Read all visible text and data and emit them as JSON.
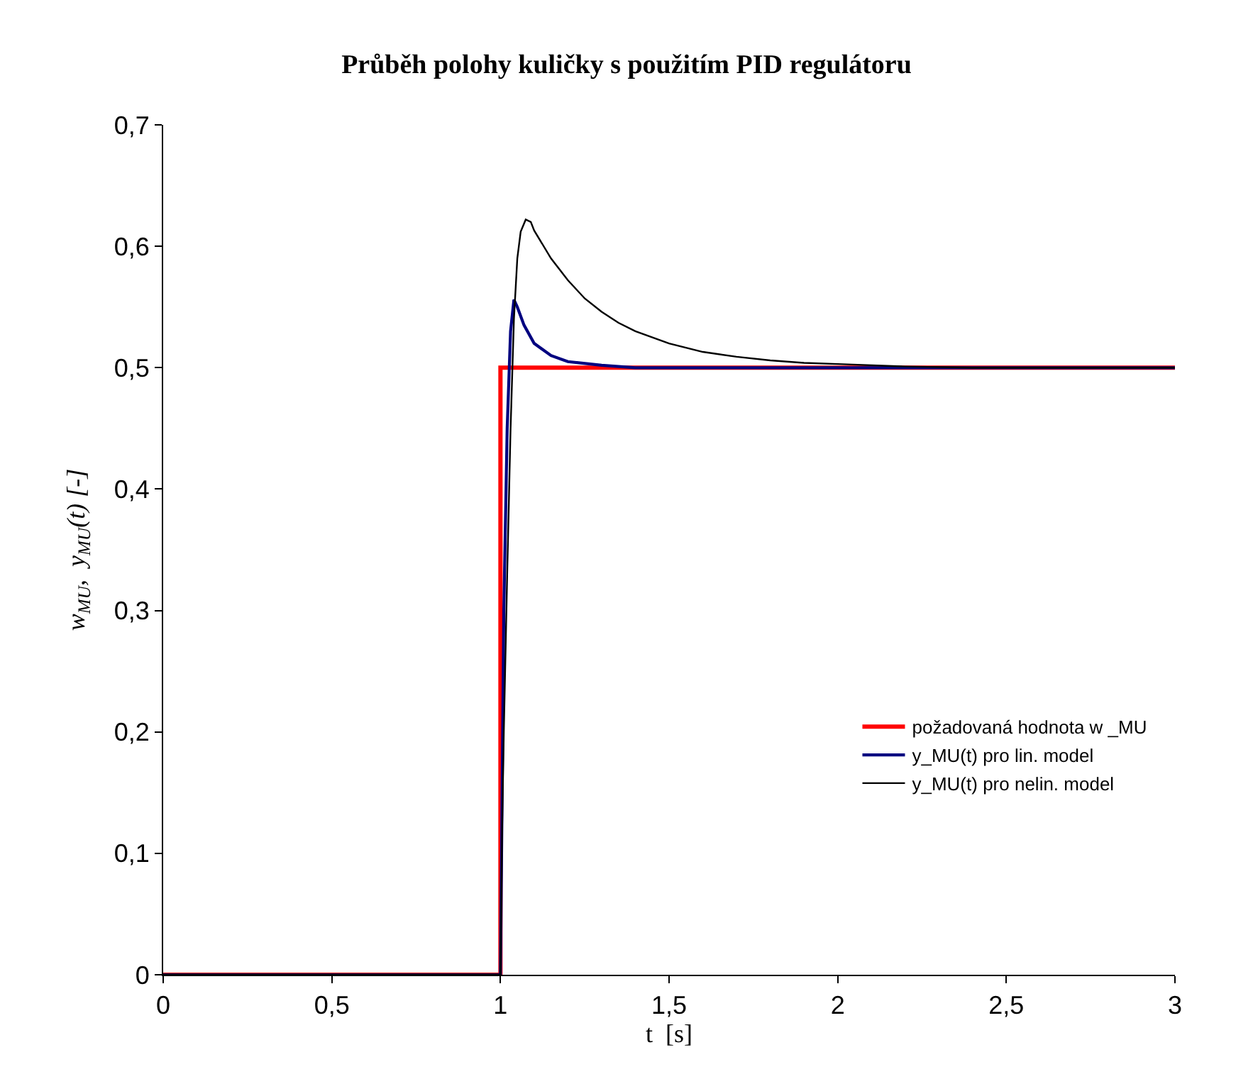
{
  "chart_data": {
    "type": "line",
    "title": "Průběh polohy kuličky s použitím PID regulátoru",
    "xlabel": "t  [s]",
    "ylabel": "w$_{MU}$,  y$_{MU}$(t) [-]",
    "xlim": [
      0,
      3
    ],
    "xticks": [
      0,
      {
        "value": 0.5,
        "label": "0,5"
      },
      1,
      {
        "value": 1.5,
        "label": "1,5"
      },
      2,
      {
        "value": 2.5,
        "label": "2,5"
      },
      3
    ],
    "ylim": [
      0,
      0.7
    ],
    "yticks": [
      0,
      {
        "value": 0.1,
        "label": "0,1"
      },
      {
        "value": 0.2,
        "label": "0,2"
      },
      {
        "value": 0.3,
        "label": "0,3"
      },
      {
        "value": 0.4,
        "label": "0,4"
      },
      {
        "value": 0.5,
        "label": "0,5"
      },
      {
        "value": 0.6,
        "label": "0,6"
      },
      {
        "value": 0.7,
        "label": "0,7"
      }
    ],
    "legend": "bottom right",
    "marker": "none",
    "line_style": "solid",
    "series": [
      {
        "name": "požadovaná hodnota w _MU",
        "color": "#ff0000",
        "x": [
          0,
          1,
          1,
          3
        ],
        "values": [
          0,
          0,
          0.5,
          0.5
        ]
      },
      {
        "name": "y_MU(t) pro lin. model",
        "color": "#000080",
        "x": [
          0,
          1,
          1.005,
          1.01,
          1.02,
          1.03,
          1.04,
          1.05,
          1.07,
          1.1,
          1.15,
          1.2,
          1.3,
          1.4,
          3
        ],
        "values": [
          0,
          0,
          0.15,
          0.3,
          0.45,
          0.53,
          0.556,
          0.55,
          0.535,
          0.52,
          0.51,
          0.505,
          0.502,
          0.5,
          0.5
        ]
      },
      {
        "name": "y_MU(t) pro nelin. model",
        "color": "#000000",
        "x": [
          0,
          1,
          1.005,
          1.01,
          1.02,
          1.03,
          1.04,
          1.05,
          1.06,
          1.075,
          1.09,
          1.1,
          1.15,
          1.2,
          1.25,
          1.3,
          1.35,
          1.4,
          1.5,
          1.6,
          1.7,
          1.8,
          1.9,
          2.0,
          2.2,
          2.4,
          3
        ],
        "values": [
          0,
          0,
          0.12,
          0.2,
          0.33,
          0.45,
          0.54,
          0.59,
          0.612,
          0.622,
          0.62,
          0.613,
          0.59,
          0.572,
          0.557,
          0.546,
          0.537,
          0.53,
          0.52,
          0.513,
          0.509,
          0.506,
          0.504,
          0.503,
          0.501,
          0.5,
          0.5
        ]
      }
    ]
  }
}
